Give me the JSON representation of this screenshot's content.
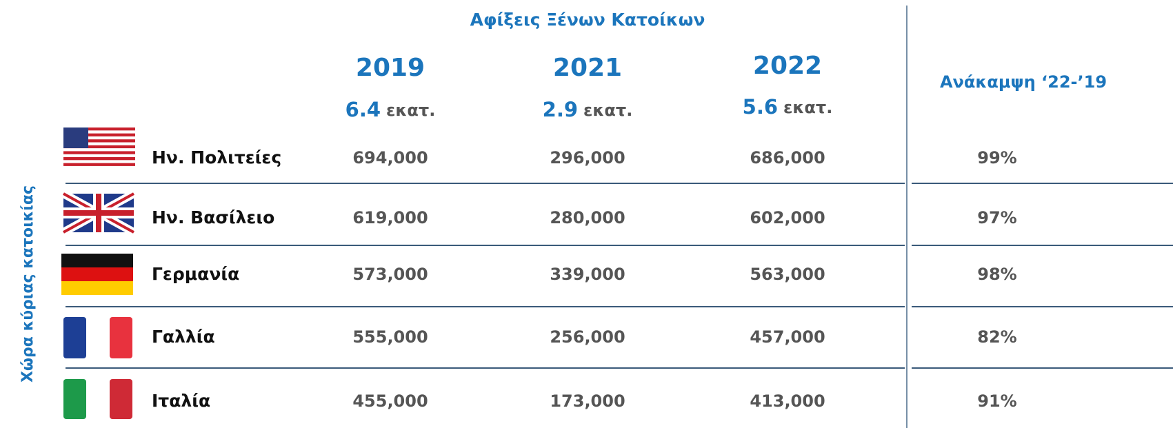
{
  "header": {
    "title": "Αφίξεις Ξένων Κατοίκων",
    "side_label": "Χώρα κύριας κατοικίας",
    "recovery": "Ανάκαμψη ‘22-’19"
  },
  "years": [
    {
      "year": "2019",
      "total": "6.4",
      "unit": "εκατ."
    },
    {
      "year": "2021",
      "total": "2.9",
      "unit": "εκατ."
    },
    {
      "year": "2022",
      "total": "5.6",
      "unit": "εκατ."
    }
  ],
  "table": {
    "rows": [
      [
        "Ην. Πολιτείες",
        "694,000",
        "296,000",
        "686,000",
        "99%"
      ],
      [
        "Ην. Βασίλειο",
        "619,000",
        "280,000",
        "602,000",
        "97%"
      ],
      [
        "Γερμανία",
        "573,000",
        "339,000",
        "563,000",
        "98%"
      ],
      [
        "Γαλλία",
        "555,000",
        "256,000",
        "457,000",
        "82%"
      ],
      [
        "Ιταλία",
        "455,000",
        "173,000",
        "413,000",
        "91%"
      ]
    ]
  }
}
